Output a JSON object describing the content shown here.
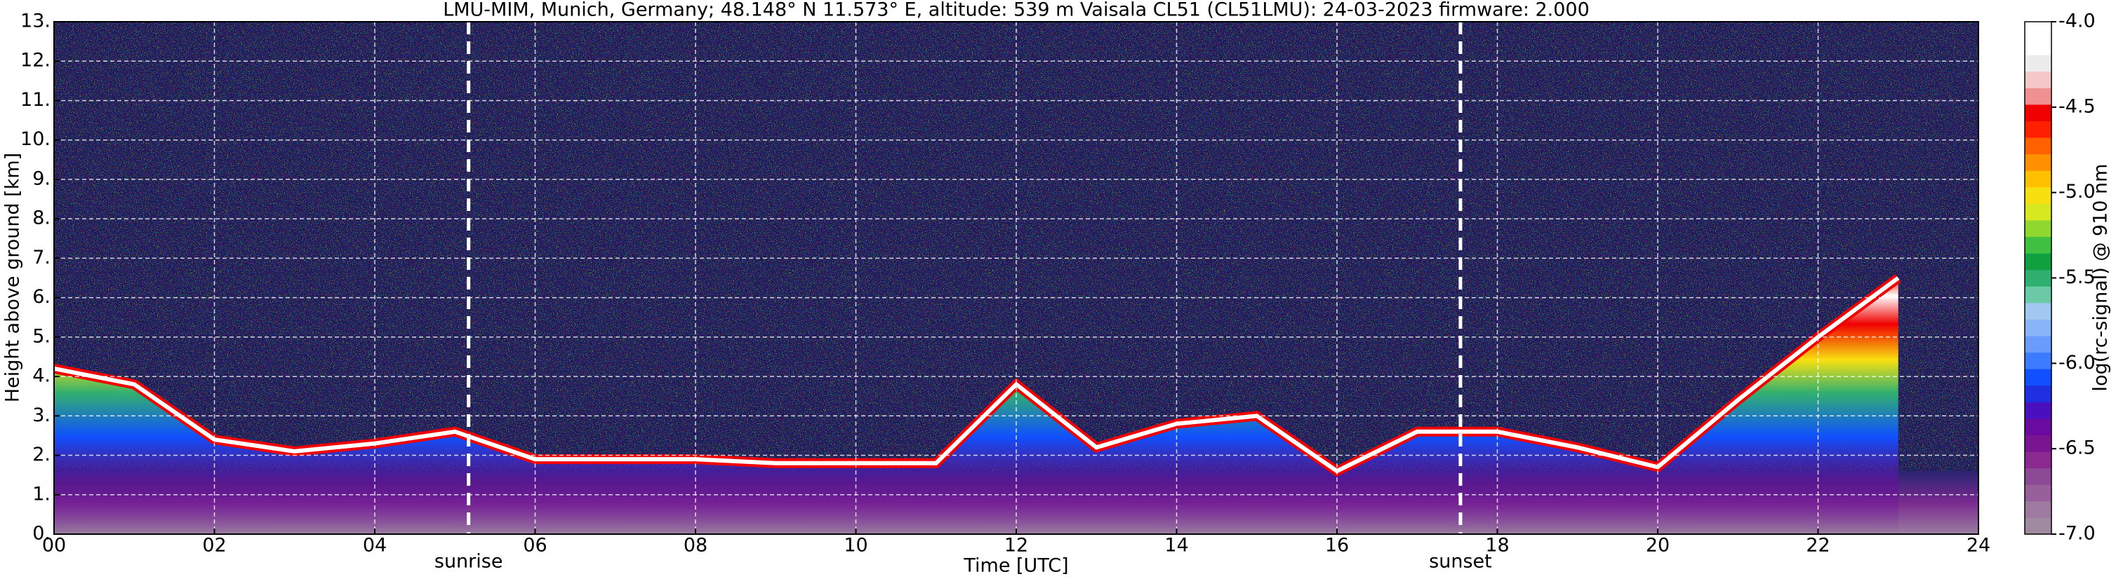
{
  "chart_data": {
    "type": "heatmap",
    "title": "LMU-MIM, Munich, Germany; 48.148° N 11.573° E, altitude: 539 m    Vaisala CL51 (CL51LMU): 24-03-2023    firmware: 2.000",
    "xlabel": "Time [UTC]",
    "ylabel": "Height above ground [km]",
    "colorbar_label": "log(rc-signal) @ 910 nm",
    "x": [
      0,
      1,
      2,
      3,
      4,
      5,
      6,
      7,
      8,
      9,
      10,
      11,
      12,
      13,
      14,
      15,
      16,
      17,
      18,
      19,
      20,
      21,
      22,
      23,
      24
    ],
    "series": [
      {
        "values": [
          4.2,
          3.8,
          2.4,
          2.1,
          2.3,
          2.6,
          1.9,
          1.9,
          1.9,
          1.8,
          1.8,
          1.8,
          3.8,
          2.2,
          2.8,
          3.0,
          1.6,
          2.6,
          2.6,
          2.2,
          1.7,
          3.4,
          5.0,
          6.5,
          null
        ]
      }
    ],
    "xlim": [
      0,
      24
    ],
    "xticks": [
      {
        "value": 0,
        "label": "00"
      },
      {
        "value": 2,
        "label": "02"
      },
      {
        "value": 4,
        "label": "04"
      },
      {
        "value": 6,
        "label": "06"
      },
      {
        "value": 8,
        "label": "08"
      },
      10,
      12,
      14,
      16,
      18,
      20,
      22,
      24
    ],
    "ylim": [
      0,
      13
    ],
    "yticks": [
      {
        "value": 0,
        "label": "0."
      },
      {
        "value": 1,
        "label": "1."
      },
      {
        "value": 2,
        "label": "2."
      },
      {
        "value": 3,
        "label": "3."
      },
      {
        "value": 4,
        "label": "4."
      },
      {
        "value": 5,
        "label": "5."
      },
      {
        "value": 6,
        "label": "6."
      },
      {
        "value": 7,
        "label": "7."
      },
      {
        "value": 8,
        "label": "8."
      },
      {
        "value": 9,
        "label": "9."
      },
      {
        "value": 10,
        "label": "10."
      },
      {
        "value": 11,
        "label": "11."
      },
      {
        "value": 12,
        "label": "12."
      },
      {
        "value": 13,
        "label": "13."
      }
    ],
    "clim": [
      -7,
      -4
    ],
    "cticks": [
      {
        "value": -4,
        "label": "-4.0"
      },
      -4.5,
      {
        "value": -5,
        "label": "-5.0"
      },
      -5.5,
      {
        "value": -6,
        "label": "-6.0"
      },
      -6.5,
      {
        "value": -7,
        "label": "-7.0"
      }
    ],
    "colormap": [
      "#a08aa0",
      "#9e7aa0",
      "#97609a",
      "#8c4a95",
      "#8a2a90",
      "#7a1490",
      "#6a0aa0",
      "#4a10c0",
      "#2030e0",
      "#1050ff",
      "#3c7aff",
      "#6a9cff",
      "#8ab4f8",
      "#a0c8f0",
      "#6acaa8",
      "#30b070",
      "#10a040",
      "#40c040",
      "#90d830",
      "#d8e820",
      "#f8e010",
      "#ffc000",
      "#ff9000",
      "#ff6000",
      "#ff2000",
      "#f00000",
      "#f09090",
      "#f4c8c8",
      "#ececec",
      "#ffffff",
      "#ffffff"
    ],
    "annotations": [
      {
        "text": "sunrise",
        "x": 5.17
      },
      {
        "text": "sunset",
        "x": 17.54
      }
    ],
    "grid": true
  }
}
